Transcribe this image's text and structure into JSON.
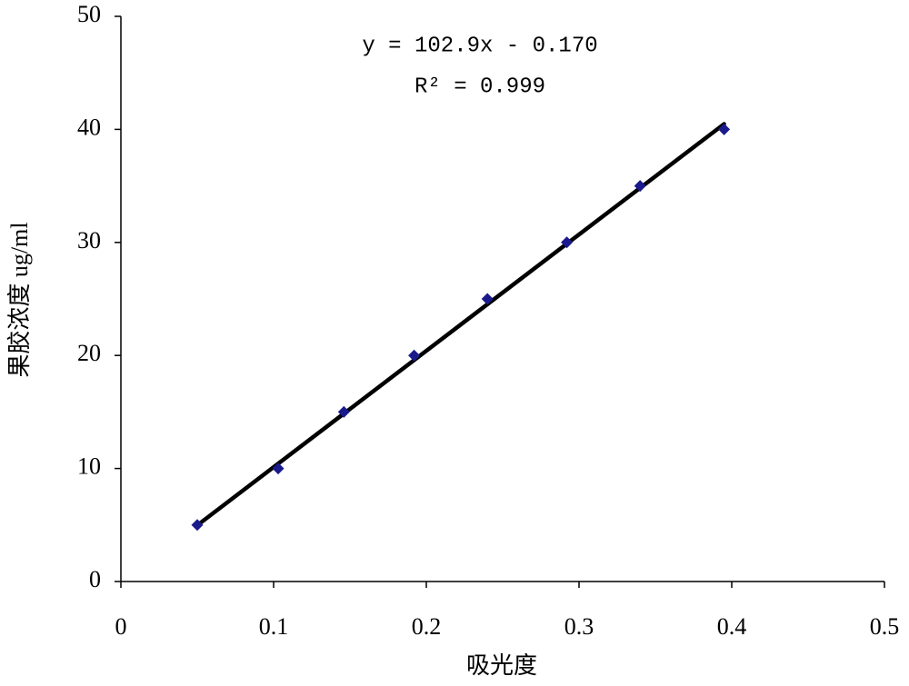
{
  "chart_data": {
    "type": "scatter",
    "x_label": "吸光度",
    "y_label": "果胶浓度 ug/ml",
    "series": [
      {
        "name": "果胶浓度",
        "color": "#1a1a8c",
        "x": [
          0.05,
          0.103,
          0.146,
          0.192,
          0.24,
          0.292,
          0.34,
          0.395
        ],
        "values": [
          5,
          10,
          15,
          20,
          25,
          30,
          35,
          40
        ]
      }
    ],
    "trendline": {
      "slope": 102.9,
      "intercept": -0.17,
      "color": "#000000",
      "equation": "y = 102.9x - 0.170",
      "r2_label": "R² = 0.999"
    },
    "xlim": [
      0,
      0.5
    ],
    "xticks": [
      0,
      0.1,
      0.2,
      0.3,
      0.4,
      0.5
    ],
    "ylim": [
      0,
      50
    ],
    "yticks": [
      0,
      10,
      20,
      30,
      40,
      50
    ],
    "grid": false
  }
}
